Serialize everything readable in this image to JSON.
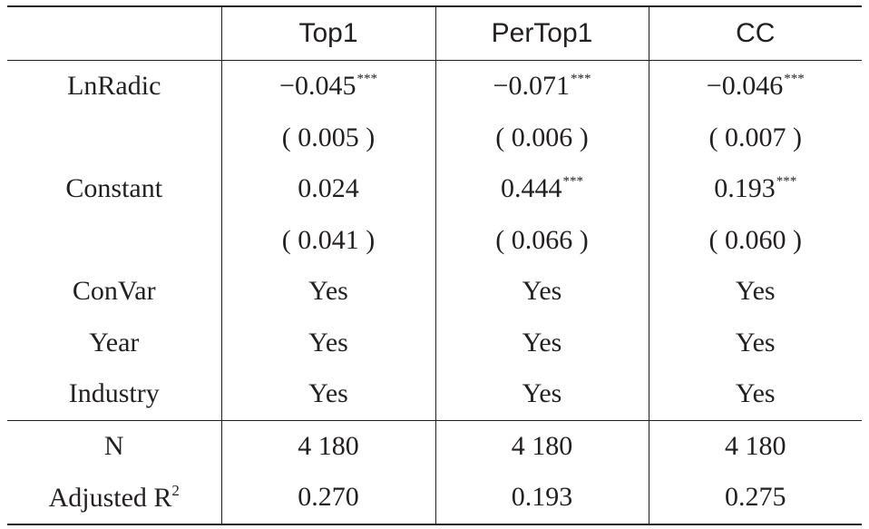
{
  "table": {
    "headers": [
      "",
      "Top1",
      "PerTop1",
      "CC"
    ],
    "rows": [
      {
        "label": "LnRadic",
        "cells": [
          {
            "value": "0.045",
            "neg": true,
            "sig": "***"
          },
          {
            "value": "0.071",
            "neg": true,
            "sig": "***"
          },
          {
            "value": "0.046",
            "neg": true,
            "sig": "***"
          }
        ]
      },
      {
        "label": "",
        "cells": [
          {
            "value": "( 0.005 )"
          },
          {
            "value": "( 0.006 )"
          },
          {
            "value": "( 0.007 )"
          }
        ]
      },
      {
        "label": "Constant",
        "cells": [
          {
            "value": "0.024"
          },
          {
            "value": "0.444",
            "sig": "***"
          },
          {
            "value": "0.193",
            "sig": "***"
          }
        ]
      },
      {
        "label": "",
        "cells": [
          {
            "value": "( 0.041 )"
          },
          {
            "value": "( 0.066 )"
          },
          {
            "value": "( 0.060 )"
          }
        ]
      },
      {
        "label": "ConVar",
        "cells": [
          {
            "value": "Yes"
          },
          {
            "value": "Yes"
          },
          {
            "value": "Yes"
          }
        ]
      },
      {
        "label": "Year",
        "cells": [
          {
            "value": "Yes"
          },
          {
            "value": "Yes"
          },
          {
            "value": "Yes"
          }
        ]
      },
      {
        "label": "Industry",
        "cells": [
          {
            "value": "Yes"
          },
          {
            "value": "Yes"
          },
          {
            "value": "Yes"
          }
        ]
      },
      {
        "label": "N",
        "separator_above": true,
        "cells": [
          {
            "value": "4 180"
          },
          {
            "value": "4 180"
          },
          {
            "value": "4 180"
          }
        ]
      },
      {
        "label": "Adjusted R",
        "label_sup": "2",
        "cells": [
          {
            "value": "0.270"
          },
          {
            "value": "0.193"
          },
          {
            "value": "0.275"
          }
        ]
      }
    ]
  }
}
